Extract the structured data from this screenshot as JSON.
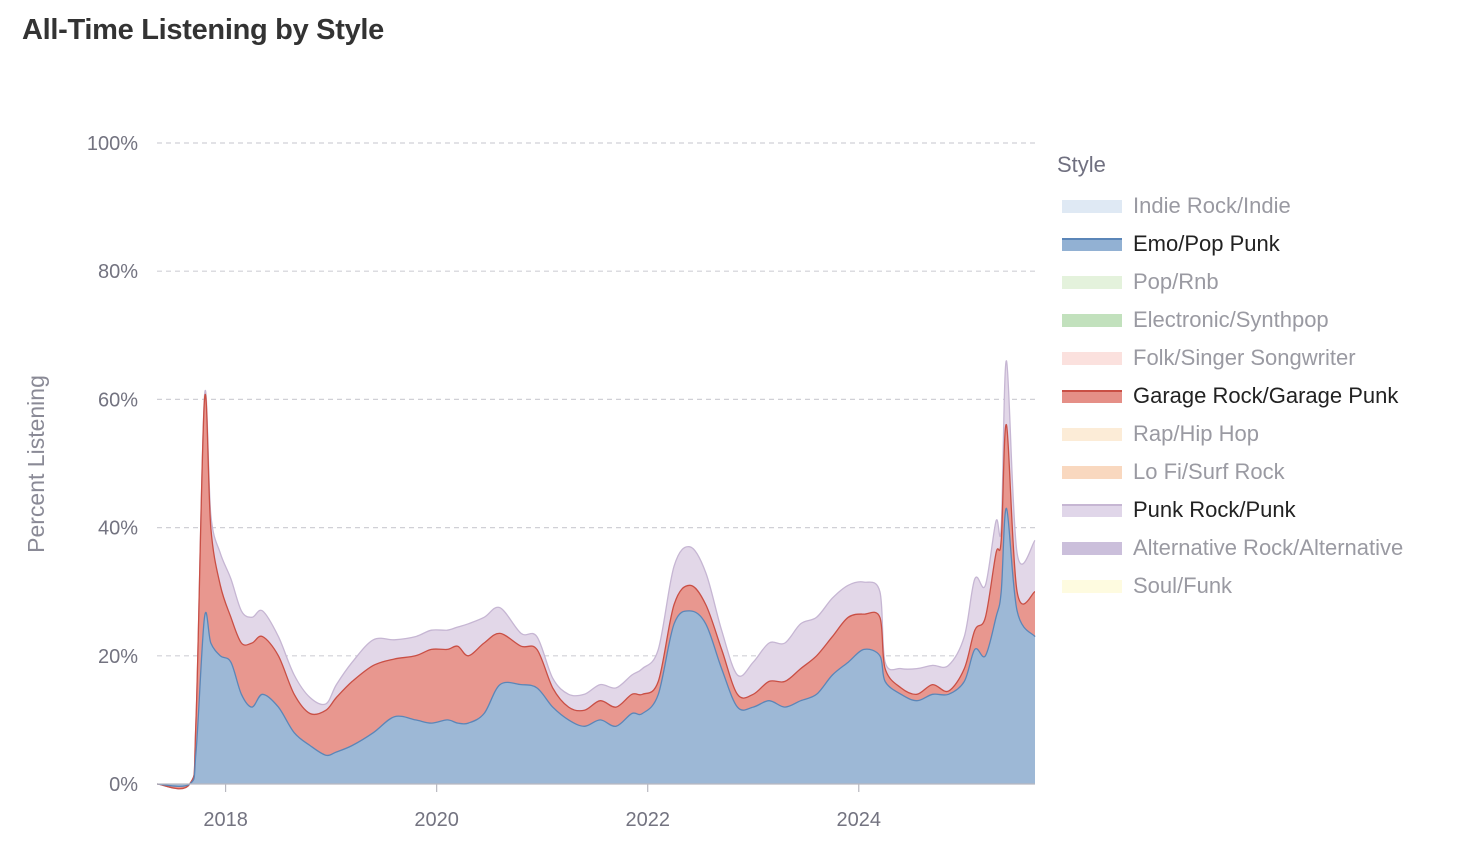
{
  "page": {
    "title": "All-Time Listening by Style"
  },
  "legend": {
    "title": "Style",
    "items": [
      {
        "label": "Indie Rock/Indie",
        "color": "#dfe9f4",
        "active": false
      },
      {
        "label": "Emo/Pop Punk",
        "color": "#92b1d3",
        "active": true
      },
      {
        "label": "Pop/Rnb",
        "color": "#e4f2dc",
        "active": false
      },
      {
        "label": "Electronic/Synthpop",
        "color": "#c2e1bd",
        "active": false
      },
      {
        "label": "Folk/Singer Songwriter",
        "color": "#fbe1de",
        "active": false
      },
      {
        "label": "Garage Rock/Garage Punk",
        "color": "#e58f87",
        "active": true
      },
      {
        "label": "Rap/Hip Hop",
        "color": "#fcecd7",
        "active": false
      },
      {
        "label": "Lo Fi/Surf Rock",
        "color": "#f9d8bf",
        "active": false
      },
      {
        "label": "Punk Rock/Punk",
        "color": "#e0d6e9",
        "active": true
      },
      {
        "label": "Alternative Rock/Alternative",
        "color": "#cbbfdb",
        "active": false
      },
      {
        "label": "Soul/Funk",
        "color": "#fefbe0",
        "active": false
      }
    ]
  },
  "chart_data": {
    "type": "area",
    "stacked": true,
    "title": "All-Time Listening by Style",
    "ylabel": "Percent Listening",
    "xlabel": "",
    "xlim": [
      2017.35,
      2025.67
    ],
    "ylim": [
      0,
      100
    ],
    "y_ticks": [
      "0%",
      "20%",
      "40%",
      "60%",
      "80%",
      "100%"
    ],
    "y_tick_values": [
      0,
      20,
      40,
      60,
      80,
      100
    ],
    "x_ticks": [
      "2018",
      "2020",
      "2022",
      "2024"
    ],
    "x_tick_values": [
      2018,
      2020,
      2022,
      2024
    ],
    "grid": "horizontal dashed",
    "legend_position": "right",
    "x": [
      2017.35,
      2017.66,
      2017.72,
      2017.8,
      2017.86,
      2017.95,
      2018.05,
      2018.15,
      2018.25,
      2018.35,
      2018.5,
      2018.65,
      2018.8,
      2018.95,
      2019.05,
      2019.2,
      2019.4,
      2019.6,
      2019.8,
      2019.95,
      2020.1,
      2020.2,
      2020.3,
      2020.45,
      2020.6,
      2020.8,
      2020.95,
      2021.1,
      2021.25,
      2021.4,
      2021.55,
      2021.7,
      2021.85,
      2021.95,
      2022.1,
      2022.25,
      2022.4,
      2022.55,
      2022.7,
      2022.85,
      2023.0,
      2023.15,
      2023.3,
      2023.45,
      2023.6,
      2023.75,
      2023.9,
      2024.05,
      2024.2,
      2024.25,
      2024.4,
      2024.55,
      2024.7,
      2024.85,
      2025.0,
      2025.1,
      2025.2,
      2025.3,
      2025.35,
      2025.4,
      2025.5,
      2025.67
    ],
    "series": [
      {
        "name": "Emo/Pop Punk",
        "color": "#9db8d6",
        "stroke": "#5b86b8",
        "values": [
          0,
          0,
          5,
          26,
          22,
          20,
          19,
          14,
          12,
          14,
          12,
          8,
          6,
          4.5,
          5,
          6,
          8,
          10.5,
          10,
          9.5,
          10,
          9.5,
          9.5,
          11,
          15.5,
          15.5,
          15,
          12,
          10,
          9,
          10,
          9,
          11,
          11,
          14,
          25,
          27,
          25,
          18,
          12,
          12,
          13,
          12,
          13,
          14,
          17,
          19,
          21,
          20,
          16,
          14,
          13,
          14,
          14,
          16,
          21,
          20,
          26,
          30,
          43,
          27,
          23
        ]
      },
      {
        "name": "Garage Rock/Garage Punk",
        "color": "#e8978f",
        "stroke": "#c94f45",
        "values": [
          0,
          0,
          5,
          34,
          18,
          11,
          7,
          8,
          10,
          9,
          8,
          6,
          5,
          7,
          8.5,
          10,
          10.5,
          9,
          10,
          11.5,
          11,
          12,
          10.5,
          11,
          8,
          6,
          6,
          3,
          2,
          2.5,
          3,
          3,
          3,
          3,
          2,
          3,
          4,
          3,
          3,
          2,
          2,
          3,
          4,
          5,
          6,
          6,
          7,
          5.5,
          6,
          2,
          1,
          1,
          1.5,
          0.5,
          2,
          3,
          6,
          10,
          8,
          13,
          3,
          7
        ]
      },
      {
        "name": "Punk Rock/Punk",
        "color": "#e2d7e8",
        "stroke": "#c6b6d3",
        "values": [
          0,
          0,
          0,
          0.5,
          2,
          5,
          6,
          5,
          4,
          4,
          3,
          3,
          2.5,
          1,
          2,
          3,
          4,
          3,
          3,
          3,
          3,
          3,
          5,
          4,
          4,
          2,
          2,
          1.5,
          2,
          2.5,
          2.5,
          3,
          3,
          4,
          5,
          6,
          6,
          5,
          3,
          3,
          5,
          6,
          6,
          7,
          6,
          6,
          5,
          5,
          4,
          1,
          3,
          4,
          3,
          4,
          5,
          8,
          5,
          5,
          2,
          10,
          6,
          8
        ]
      }
    ]
  }
}
